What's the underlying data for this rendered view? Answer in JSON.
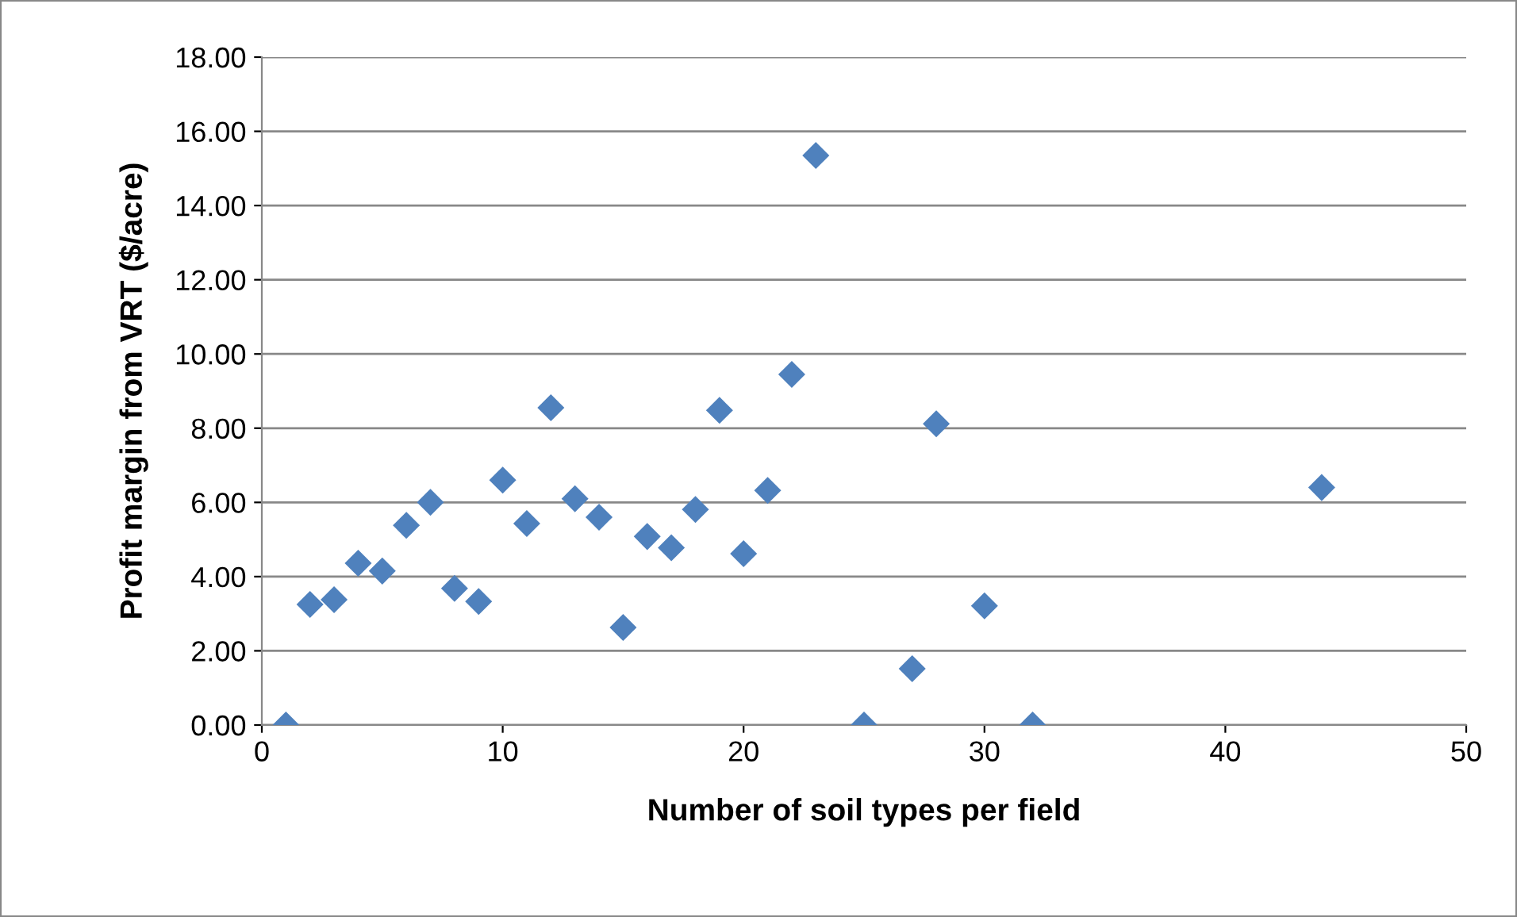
{
  "chart_data": {
    "type": "scatter",
    "xlabel": "Number of soil types per field",
    "ylabel": "Profit margin from VRT ($/acre)",
    "series": [
      {
        "color": "#4f81bd",
        "x": [
          1,
          2,
          3,
          4,
          5,
          6,
          7,
          8,
          9,
          10,
          11,
          12,
          13,
          14,
          15,
          16,
          17,
          18,
          19,
          20,
          21,
          22,
          23,
          25,
          27,
          28,
          30,
          32,
          44
        ],
        "values": [
          0.0,
          3.25,
          3.38,
          4.36,
          4.15,
          5.38,
          6.0,
          3.68,
          3.33,
          6.6,
          5.43,
          8.55,
          6.1,
          5.6,
          2.63,
          5.08,
          4.78,
          5.81,
          8.48,
          4.62,
          6.32,
          9.45,
          15.35,
          0.0,
          1.52,
          8.12,
          3.21,
          0.0,
          6.4
        ]
      }
    ],
    "marker": "diamond",
    "grid": "y",
    "xlim": [
      0,
      50
    ],
    "xticks": [
      0,
      10,
      20,
      30,
      40,
      50
    ],
    "ylim": [
      0,
      18
    ],
    "yticks": [
      {
        "value": 0,
        "label": "0.00"
      },
      {
        "value": 2,
        "label": "2.00"
      },
      {
        "value": 4,
        "label": "4.00"
      },
      {
        "value": 6,
        "label": "6.00"
      },
      {
        "value": 8,
        "label": "8.00"
      },
      {
        "value": 10,
        "label": "10.00"
      },
      {
        "value": 12,
        "label": "12.00"
      },
      {
        "value": 14,
        "label": "14.00"
      },
      {
        "value": 16,
        "label": "16.00"
      },
      {
        "value": 18,
        "label": "18.00"
      }
    ]
  }
}
